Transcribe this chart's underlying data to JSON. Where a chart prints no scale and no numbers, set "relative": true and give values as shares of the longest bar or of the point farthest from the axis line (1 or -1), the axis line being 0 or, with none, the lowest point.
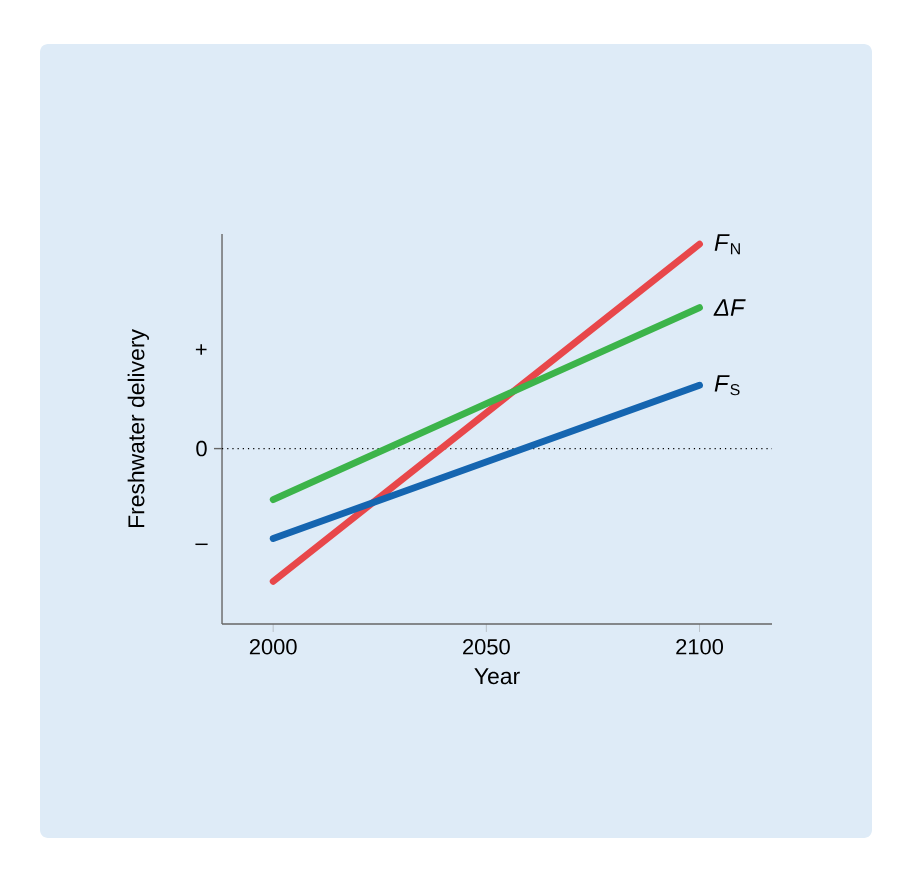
{
  "chart_data": {
    "type": "line",
    "xlabel": "Year",
    "ylabel": "Freshwater delivery",
    "x": [
      2000,
      2100
    ],
    "xlim": [
      1988,
      2117
    ],
    "xticks": [
      2000,
      2050,
      2100
    ],
    "relative": true,
    "annotations": [
      "+",
      "–"
    ],
    "series": [
      {
        "name": "*F*$_{N}$",
        "color": "#e8474a",
        "values": [
          -0.65,
          1
        ]
      },
      {
        "name": "*ΔF*",
        "color": "#3cb44a",
        "values": [
          -0.25,
          0.69
        ]
      },
      {
        "name": "*F*$_{S}$",
        "color": "#1565b0",
        "values": [
          -0.44,
          0.31
        ]
      }
    ],
    "ref_lines": [
      {
        "axis": "y",
        "value": 0,
        "label": "0",
        "line_style": "dotted",
        "color": "#000000"
      }
    ],
    "line_style": "solid",
    "marker": "none"
  }
}
